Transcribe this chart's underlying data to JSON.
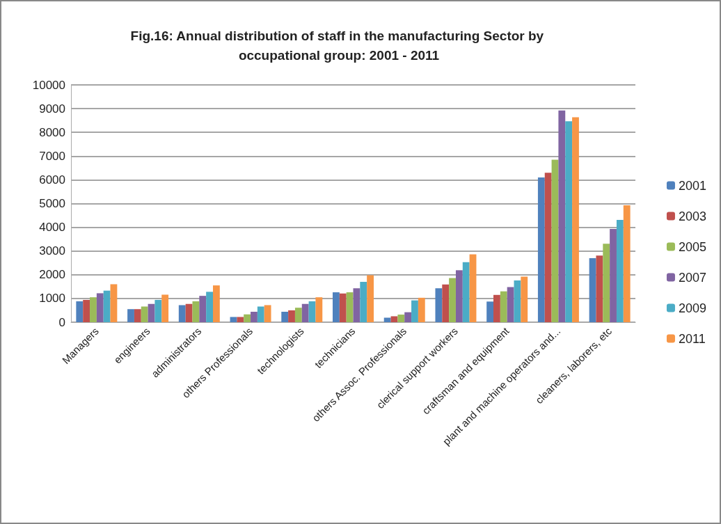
{
  "chart_data": {
    "type": "bar",
    "title": "Fig.16: Annual distribution of staff in the manufacturing Sector by occupational group: 2001 - 2011",
    "categories": [
      "Managers",
      "engineers",
      "administrators",
      "others Professionals",
      "technologists",
      "technicians",
      "others Assoc. Professionals",
      "clerical support workers",
      "craftsman and equipment",
      "plant and machine operators and...",
      "cleaners, laborers, etc"
    ],
    "series": [
      {
        "name": "2001",
        "color": "#4f81bd",
        "values": [
          880,
          550,
          720,
          220,
          440,
          1260,
          190,
          1430,
          870,
          6100,
          2700
        ]
      },
      {
        "name": "2003",
        "color": "#c0504d",
        "values": [
          940,
          550,
          770,
          220,
          500,
          1210,
          250,
          1590,
          1150,
          6300,
          2810
        ]
      },
      {
        "name": "2005",
        "color": "#9bbb59",
        "values": [
          1050,
          660,
          880,
          330,
          610,
          1260,
          320,
          1860,
          1300,
          6850,
          3310
        ]
      },
      {
        "name": "2007",
        "color": "#8064a2",
        "values": [
          1220,
          770,
          1110,
          440,
          770,
          1430,
          420,
          2190,
          1480,
          8920,
          3930
        ]
      },
      {
        "name": "2009",
        "color": "#4bacc6",
        "values": [
          1330,
          940,
          1280,
          660,
          880,
          1700,
          920,
          2530,
          1760,
          8470,
          4310
        ]
      },
      {
        "name": "2011",
        "color": "#f79646",
        "values": [
          1600,
          1160,
          1550,
          720,
          1050,
          1980,
          1030,
          2860,
          1920,
          8640,
          4930
        ]
      }
    ],
    "ylim": [
      0,
      10000
    ],
    "yticks": [
      0,
      1000,
      2000,
      3000,
      4000,
      5000,
      6000,
      7000,
      8000,
      9000,
      10000
    ],
    "grid": "y",
    "legend": "right"
  }
}
